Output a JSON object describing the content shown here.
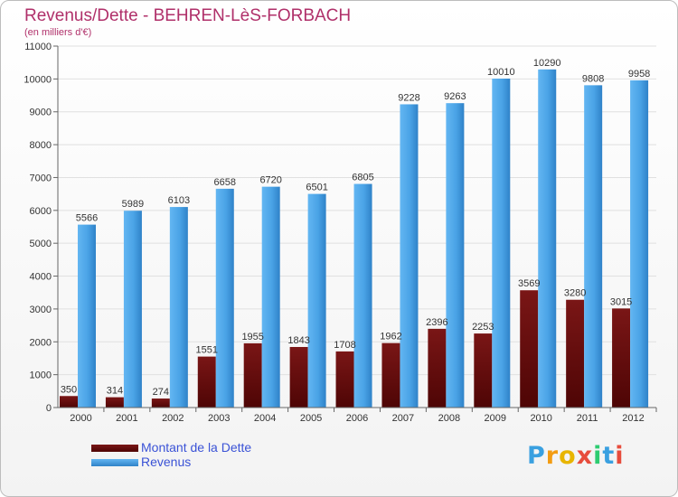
{
  "title": "Revenus/Dette - BEHREN-LèS-FORBACH",
  "subtitle": "(en milliers d'€)",
  "legend": [
    {
      "label": "Montant de la Dette",
      "color": "#6e0c0c"
    },
    {
      "label": "Revenus",
      "color": "#4aa3e6"
    }
  ],
  "logo_text": "Proxiti",
  "chart_data": {
    "type": "bar",
    "categories": [
      "2000",
      "2001",
      "2002",
      "2003",
      "2004",
      "2005",
      "2006",
      "2007",
      "2008",
      "2009",
      "2010",
      "2011",
      "2012"
    ],
    "series": [
      {
        "name": "Montant de la Dette",
        "color": "#6e0c0c",
        "values": [
          350,
          314,
          274,
          1551,
          1955,
          1843,
          1708,
          1962,
          2396,
          2253,
          3569,
          3280,
          3015
        ],
        "labels": [
          "350",
          "314",
          "274",
          "1551",
          "1955",
          "1843",
          "1708",
          "1962",
          "2396",
          "2253",
          "3569",
          "3280",
          "3015"
        ]
      },
      {
        "name": "Revenus",
        "color": "#4aa3e6",
        "values": [
          5566,
          5989,
          6103,
          6658,
          6720,
          6501,
          6805,
          9228,
          9263,
          10010,
          10290,
          9808,
          9958
        ],
        "labels": [
          "5566",
          "5989",
          "6103",
          "6658",
          "6720",
          "6501",
          "6805",
          "9228",
          "9263",
          "10010",
          "10290",
          "9808",
          "9958"
        ]
      }
    ],
    "yticks": [
      "0",
      "1000",
      "2000",
      "3000",
      "4000",
      "5000",
      "6000",
      "7000",
      "8000",
      "9000",
      "10000",
      "11000"
    ],
    "ylim": [
      0,
      11000
    ],
    "grid": true
  }
}
